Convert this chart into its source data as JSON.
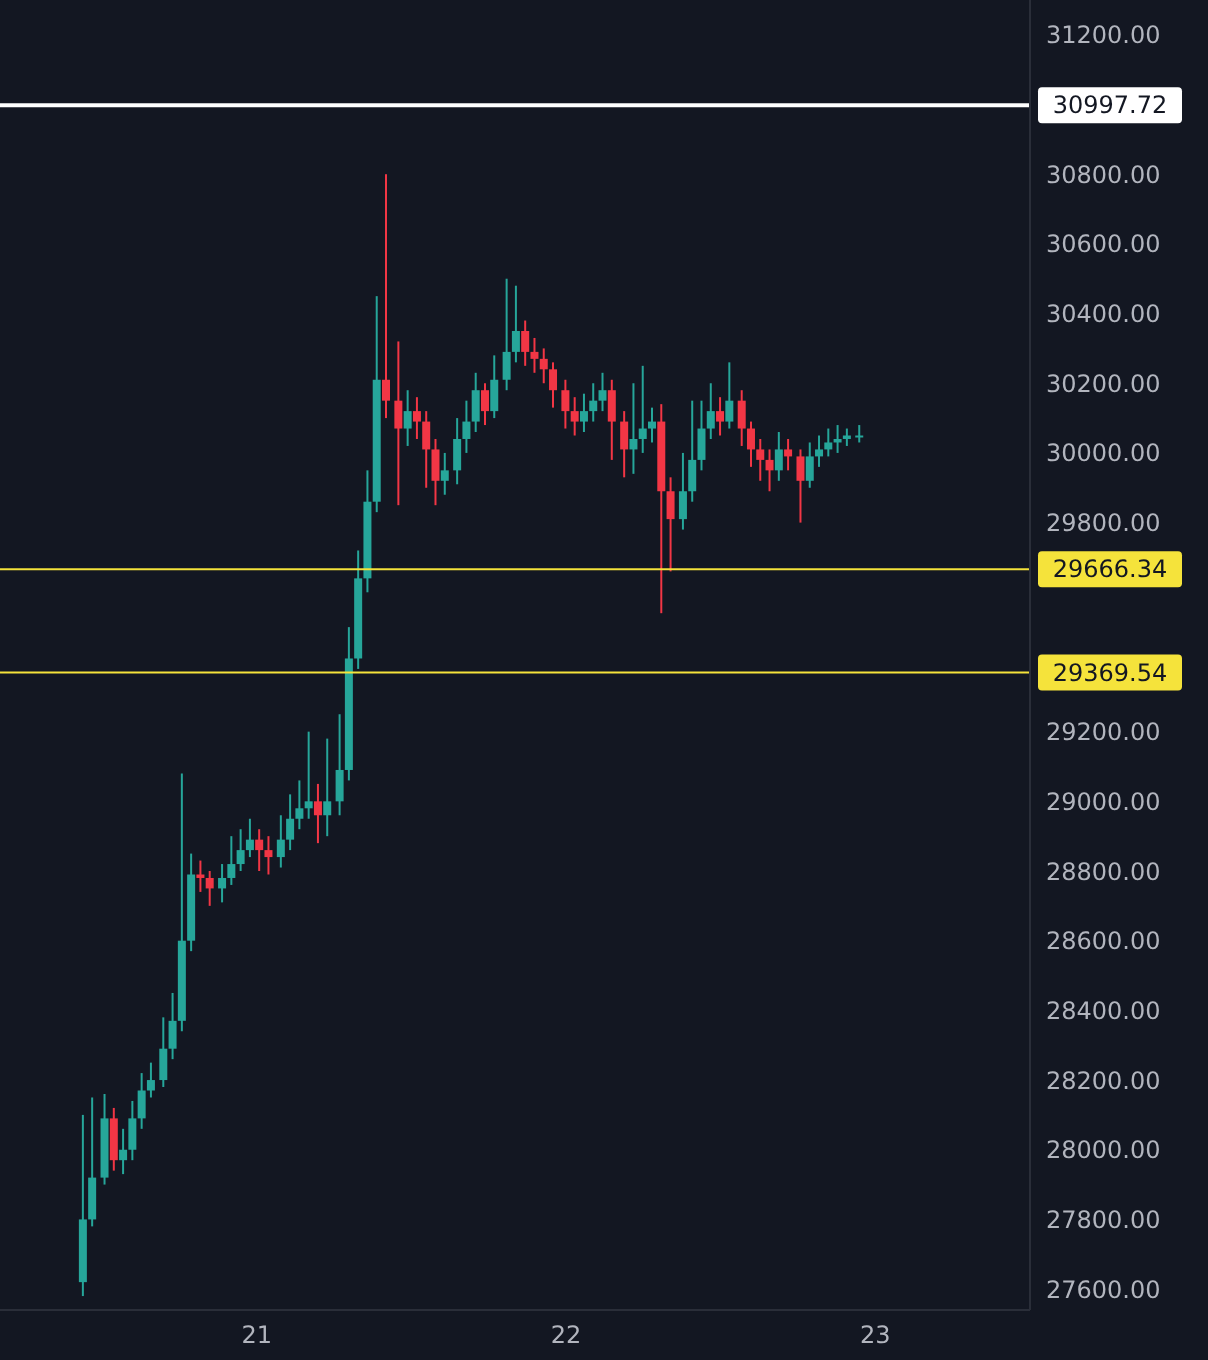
{
  "chart_data": {
    "type": "candlestick",
    "x": [
      20.44,
      20.47,
      20.51,
      20.54,
      20.57,
      20.6,
      20.63,
      20.66,
      20.7,
      20.73,
      20.76,
      20.79,
      20.82,
      20.85,
      20.89,
      20.92,
      20.95,
      20.98,
      21.01,
      21.04,
      21.08,
      21.11,
      21.14,
      21.17,
      21.2,
      21.23,
      21.27,
      21.3,
      21.33,
      21.36,
      21.39,
      21.42,
      21.46,
      21.49,
      21.52,
      21.55,
      21.58,
      21.61,
      21.65,
      21.68,
      21.71,
      21.74,
      21.77,
      21.81,
      21.84,
      21.87,
      21.9,
      21.93,
      21.96,
      22.0,
      22.03,
      22.06,
      22.09,
      22.12,
      22.15,
      22.19,
      22.22,
      22.25,
      22.28,
      22.31,
      22.34,
      22.38,
      22.41,
      22.44,
      22.47,
      22.5,
      22.53,
      22.57,
      22.6,
      22.63,
      22.66,
      22.69,
      22.72,
      22.76,
      22.79,
      22.82,
      22.85,
      22.88,
      22.91,
      22.95
    ],
    "ohlc": [
      [
        27620,
        28100,
        27580,
        27800
      ],
      [
        27800,
        28150,
        27780,
        27920
      ],
      [
        27920,
        28160,
        27900,
        28090
      ],
      [
        28090,
        28120,
        27940,
        27970
      ],
      [
        27970,
        28060,
        27930,
        28000
      ],
      [
        28000,
        28140,
        27970,
        28090
      ],
      [
        28090,
        28220,
        28060,
        28170
      ],
      [
        28170,
        28250,
        28150,
        28200
      ],
      [
        28200,
        28380,
        28180,
        28290
      ],
      [
        28290,
        28450,
        28260,
        28370
      ],
      [
        28370,
        29080,
        28340,
        28600
      ],
      [
        28600,
        28850,
        28570,
        28790
      ],
      [
        28790,
        28830,
        28740,
        28780
      ],
      [
        28780,
        28800,
        28700,
        28750
      ],
      [
        28750,
        28820,
        28710,
        28780
      ],
      [
        28780,
        28900,
        28760,
        28820
      ],
      [
        28820,
        28920,
        28800,
        28860
      ],
      [
        28860,
        28950,
        28840,
        28890
      ],
      [
        28890,
        28920,
        28800,
        28860
      ],
      [
        28860,
        28900,
        28790,
        28840
      ],
      [
        28840,
        28960,
        28810,
        28890
      ],
      [
        28890,
        29020,
        28860,
        28950
      ],
      [
        28950,
        29060,
        28920,
        28980
      ],
      [
        28980,
        29200,
        28950,
        29000
      ],
      [
        29000,
        29050,
        28880,
        28960
      ],
      [
        28960,
        29180,
        28900,
        29000
      ],
      [
        29000,
        29250,
        28960,
        29090
      ],
      [
        29090,
        29500,
        29060,
        29410
      ],
      [
        29410,
        29720,
        29380,
        29640
      ],
      [
        29640,
        29950,
        29600,
        29860
      ],
      [
        29860,
        30450,
        29830,
        30210
      ],
      [
        30210,
        30800,
        30100,
        30150
      ],
      [
        30150,
        30320,
        29850,
        30070
      ],
      [
        30070,
        30180,
        30020,
        30120
      ],
      [
        30120,
        30160,
        30040,
        30090
      ],
      [
        30090,
        30120,
        29900,
        30010
      ],
      [
        30010,
        30040,
        29850,
        29920
      ],
      [
        29920,
        30000,
        29880,
        29950
      ],
      [
        29950,
        30100,
        29910,
        30040
      ],
      [
        30040,
        30150,
        30000,
        30090
      ],
      [
        30090,
        30230,
        30060,
        30180
      ],
      [
        30180,
        30200,
        30080,
        30120
      ],
      [
        30120,
        30280,
        30100,
        30210
      ],
      [
        30210,
        30500,
        30180,
        30290
      ],
      [
        30290,
        30480,
        30260,
        30350
      ],
      [
        30350,
        30380,
        30250,
        30290
      ],
      [
        30290,
        30330,
        30230,
        30270
      ],
      [
        30270,
        30300,
        30200,
        30240
      ],
      [
        30240,
        30260,
        30130,
        30180
      ],
      [
        30180,
        30210,
        30070,
        30120
      ],
      [
        30120,
        30160,
        30050,
        30090
      ],
      [
        30090,
        30170,
        30060,
        30120
      ],
      [
        30120,
        30200,
        30090,
        30150
      ],
      [
        30150,
        30230,
        30120,
        30180
      ],
      [
        30180,
        30210,
        29980,
        30090
      ],
      [
        30090,
        30120,
        29930,
        30010
      ],
      [
        30010,
        30200,
        29940,
        30040
      ],
      [
        30040,
        30250,
        30000,
        30070
      ],
      [
        30070,
        30130,
        30030,
        30090
      ],
      [
        30090,
        30140,
        29540,
        29890
      ],
      [
        29890,
        29930,
        29660,
        29810
      ],
      [
        29810,
        30000,
        29780,
        29890
      ],
      [
        29890,
        30150,
        29860,
        29980
      ],
      [
        29980,
        30150,
        29950,
        30070
      ],
      [
        30070,
        30200,
        30040,
        30120
      ],
      [
        30120,
        30160,
        30050,
        30090
      ],
      [
        30090,
        30260,
        30070,
        30150
      ],
      [
        30150,
        30180,
        30020,
        30070
      ],
      [
        30070,
        30090,
        29960,
        30010
      ],
      [
        30010,
        30040,
        29920,
        29980
      ],
      [
        29980,
        30010,
        29890,
        29950
      ],
      [
        29950,
        30060,
        29920,
        30010
      ],
      [
        30010,
        30040,
        29950,
        29990
      ],
      [
        29990,
        30010,
        29800,
        29920
      ],
      [
        29920,
        30030,
        29900,
        29990
      ],
      [
        29990,
        30050,
        29960,
        30010
      ],
      [
        30010,
        30070,
        29990,
        30030
      ],
      [
        30030,
        30080,
        30000,
        30040
      ],
      [
        30040,
        30070,
        30020,
        30050
      ],
      [
        30050,
        30080,
        30030,
        30050
      ]
    ],
    "xlim": [
      20.17,
      23.5
    ],
    "xticks": [
      21,
      22,
      23
    ],
    "ylim": [
      27540,
      31300
    ],
    "yticks": [
      {
        "value": 27600,
        "label": "27600.00"
      },
      {
        "value": 27800,
        "label": "27800.00"
      },
      {
        "value": 28000,
        "label": "28000.00"
      },
      {
        "value": 28200,
        "label": "28200.00"
      },
      {
        "value": 28400,
        "label": "28400.00"
      },
      {
        "value": 28600,
        "label": "28600.00"
      },
      {
        "value": 28800,
        "label": "28800.00"
      },
      {
        "value": 29000,
        "label": "29000.00"
      },
      {
        "value": 29200,
        "label": "29200.00"
      },
      {
        "value": 29800,
        "label": "29800.00"
      },
      {
        "value": 30000,
        "label": "30000.00"
      },
      {
        "value": 30200,
        "label": "30200.00"
      },
      {
        "value": 30400,
        "label": "30400.00"
      },
      {
        "value": 30600,
        "label": "30600.00"
      },
      {
        "value": 30800,
        "label": "30800.00"
      },
      {
        "value": 31200,
        "label": "31200.00"
      }
    ],
    "ref_lines": [
      {
        "axis": "y",
        "value": 30997.72,
        "label": "30997.72",
        "color": "#ffffff"
      },
      {
        "axis": "y",
        "value": 29666.34,
        "label": "29666.34",
        "color": "#f5e33b"
      },
      {
        "axis": "y",
        "value": 29369.54,
        "label": "29369.54",
        "color": "#f5e33b"
      }
    ],
    "grid": false,
    "legend": false
  }
}
